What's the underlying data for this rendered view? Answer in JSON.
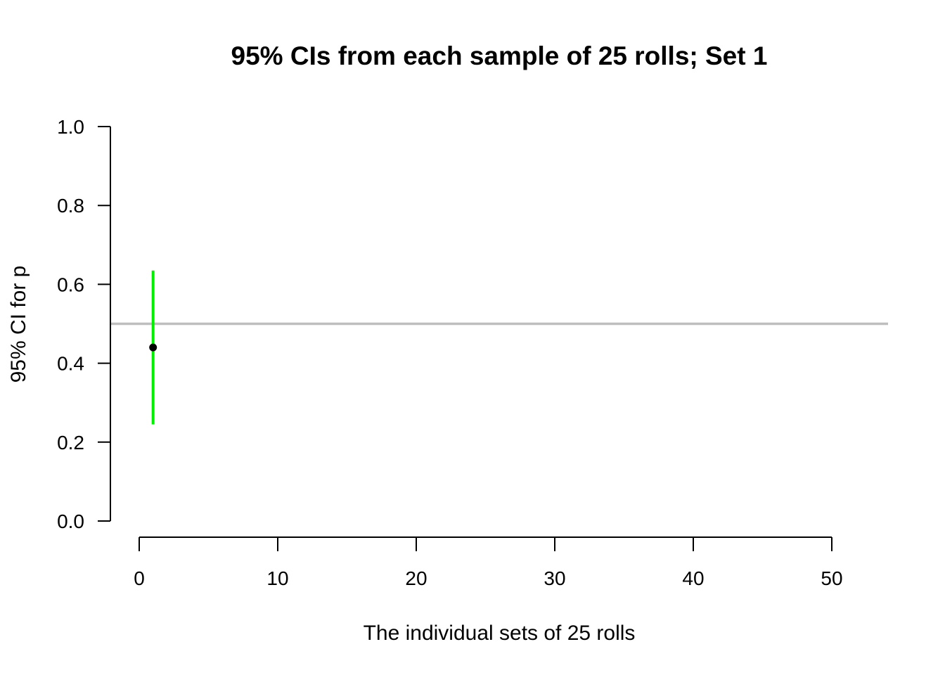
{
  "chart_data": {
    "type": "scatter",
    "title": "95% CIs from each sample of 25 rolls; Set 1",
    "xlabel": "The individual sets of 25 rolls",
    "ylabel": "95% CI for p",
    "xlim": [
      0,
      50
    ],
    "ylim": [
      0,
      1
    ],
    "x_ticks": [
      "0",
      "10",
      "20",
      "30",
      "40",
      "50"
    ],
    "y_ticks": [
      "0.0",
      "0.2",
      "0.4",
      "0.6",
      "0.8",
      "1.0"
    ],
    "reference_line": {
      "y": 0.5,
      "color": "#bebebe"
    },
    "intervals": [
      {
        "x": 1,
        "estimate": 0.44,
        "lower": 0.245,
        "upper": 0.635,
        "color": "#00ee00"
      }
    ],
    "point_color": "#000000",
    "grid": false
  }
}
